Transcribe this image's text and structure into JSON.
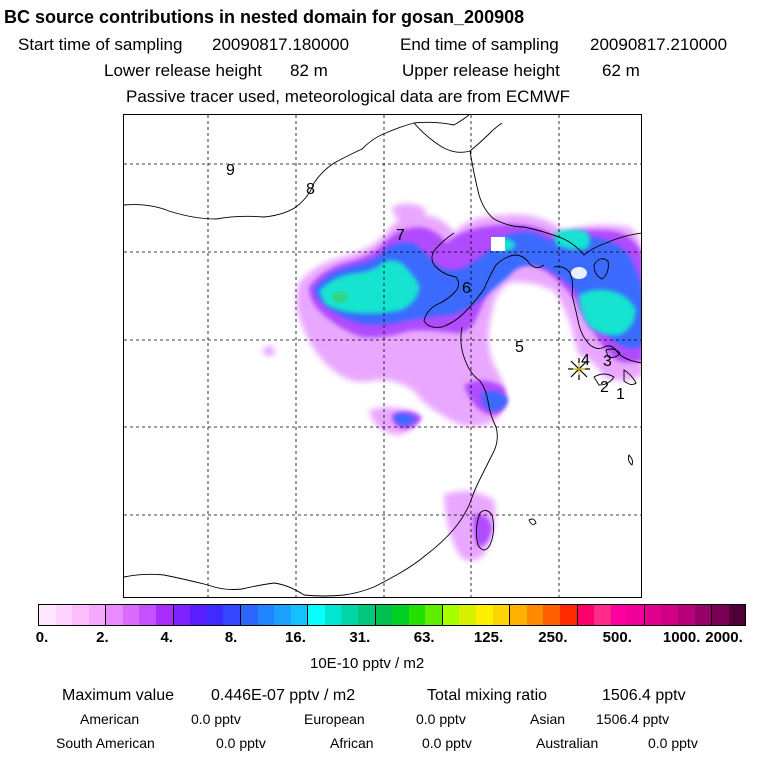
{
  "header": {
    "title": "BC  source contributions in nested domain for gosan_200908",
    "start_label": "Start time of sampling",
    "start_value": "20090817.180000",
    "end_label": "End time of sampling",
    "end_value": "20090817.210000",
    "lower_label": "Lower release height",
    "lower_value": "82 m",
    "upper_label": "Upper release height",
    "upper_value": "62 m",
    "note": "Passive tracer used, meteorological data are from ECMWF"
  },
  "map": {
    "region_numbers": [
      "1",
      "2",
      "3",
      "4",
      "5",
      "6",
      "7",
      "8",
      "9"
    ],
    "receptor": "Gosan receptor star",
    "colors": {
      "coast": "#000000",
      "grid": "#000000"
    }
  },
  "colorbar": {
    "colors": [
      "#ffe8ff",
      "#ffd4ff",
      "#ffbfff",
      "#f5a8ff",
      "#e88bff",
      "#d96bff",
      "#c550ff",
      "#a92bff",
      "#7f22ff",
      "#5a1eff",
      "#3f2aff",
      "#3446ff",
      "#2d66ff",
      "#2184ff",
      "#1aa0ff",
      "#14c0ff",
      "#07ffff",
      "#00e6d2",
      "#00d6a7",
      "#00c77c",
      "#00c050",
      "#00d024",
      "#22e000",
      "#60ee00",
      "#a8ff00",
      "#d8f000",
      "#fff000",
      "#ffd400",
      "#ffb000",
      "#ff8a00",
      "#ff5f00",
      "#ff2a00",
      "#ff006a",
      "#ff2a8a",
      "#ff00a0",
      "#f00098",
      "#e0008d",
      "#cf0083",
      "#b70078",
      "#950066",
      "#780055",
      "#4f0036"
    ],
    "ticks": [
      "0.",
      "2.",
      "4.",
      "8.",
      "16.",
      "31.",
      "63.",
      "125.",
      "250.",
      "500.",
      "1000.",
      "2000."
    ],
    "units": "10E-10 pptv / m2"
  },
  "stats": {
    "max_label": "Maximum value",
    "max_value": "0.446E-07 pptv / m2",
    "total_label": "Total mixing ratio",
    "total_value": "1506.4 pptv",
    "american_label": "American",
    "american_value": "0.0 pptv",
    "european_label": "European",
    "european_value": "0.0 pptv",
    "asian_label": "Asian",
    "asian_value": "1506.4 pptv",
    "south_american_label": "South American",
    "south_american_value": "0.0 pptv",
    "african_label": "African",
    "african_value": "0.0 pptv",
    "australian_label": "Australian",
    "australian_value": "0.0 pptv"
  }
}
